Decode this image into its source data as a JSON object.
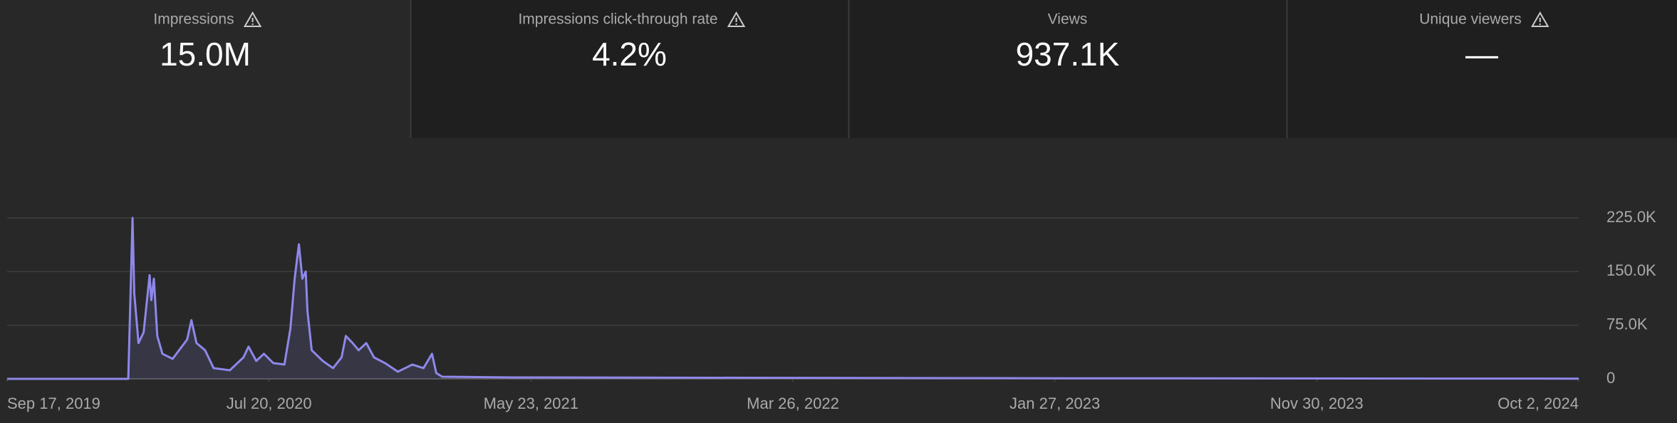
{
  "metrics": [
    {
      "label": "Impressions",
      "value": "15.0M",
      "warning": true,
      "selected": true
    },
    {
      "label": "Impressions click-through rate",
      "value": "4.2%",
      "warning": true,
      "selected": false
    },
    {
      "label": "Views",
      "value": "937.1K",
      "warning": false,
      "selected": false
    },
    {
      "label": "Unique viewers",
      "value": "—",
      "warning": true,
      "selected": false
    }
  ],
  "chart_data": {
    "type": "line",
    "x": [
      "2019-09-17",
      "2020-02-06",
      "2020-02-11",
      "2020-02-13",
      "2020-02-18",
      "2020-02-24",
      "2020-03-02",
      "2020-03-04",
      "2020-03-07",
      "2020-03-11",
      "2020-03-17",
      "2020-03-29",
      "2020-04-15",
      "2020-04-20",
      "2020-04-26",
      "2020-05-06",
      "2020-05-16",
      "2020-06-04",
      "2020-06-20",
      "2020-06-26",
      "2020-07-05",
      "2020-07-14",
      "2020-07-25",
      "2020-08-07",
      "2020-08-14",
      "2020-08-19",
      "2020-08-24",
      "2020-08-28",
      "2020-09-01",
      "2020-09-03",
      "2020-09-08",
      "2020-09-21",
      "2020-10-03",
      "2020-10-13",
      "2020-10-18",
      "2020-10-26",
      "2020-11-02",
      "2020-11-11",
      "2020-11-20",
      "2020-12-03",
      "2020-12-18",
      "2021-01-04",
      "2021-01-17",
      "2021-01-27",
      "2021-02-01",
      "2021-02-08",
      "2021-05-02",
      "2022-02-02",
      "2023-02-13",
      "2024-10-02"
    ],
    "series": [
      {
        "name": "Impressions",
        "color": "#8e88ea",
        "values": [
          0,
          0,
          225000,
          120000,
          50000,
          65000,
          145000,
          110000,
          140000,
          60000,
          35000,
          28000,
          55000,
          82000,
          50000,
          40000,
          15000,
          12000,
          30000,
          45000,
          25000,
          35000,
          22000,
          20000,
          70000,
          140000,
          188000,
          140000,
          150000,
          95000,
          40000,
          25000,
          15000,
          30000,
          60000,
          50000,
          40000,
          50000,
          30000,
          22000,
          10000,
          20000,
          15000,
          35000,
          8000,
          3000,
          2000,
          1500,
          800,
          300
        ]
      }
    ],
    "xlim": [
      "2019-09-17",
      "2024-10-02"
    ],
    "xticks": [
      {
        "value": "2019-09-17",
        "label": "Sep 17, 2019"
      },
      {
        "value": "2020-07-20",
        "label": "Jul 20, 2020"
      },
      {
        "value": "2021-05-23",
        "label": "May 23, 2021"
      },
      {
        "value": "2022-03-26",
        "label": "Mar 26, 2022"
      },
      {
        "value": "2023-01-27",
        "label": "Jan 27, 2023"
      },
      {
        "value": "2023-11-30",
        "label": "Nov 30, 2023"
      },
      {
        "value": "2024-10-02",
        "label": "Oct 2, 2024"
      }
    ],
    "ylim": [
      0,
      225000
    ],
    "yticks": [
      0,
      {
        "value": 75000,
        "label": "75.0K"
      },
      {
        "value": 150000,
        "label": "150.0K"
      },
      {
        "value": 225000,
        "label": "225.0K"
      }
    ],
    "grid": true
  }
}
